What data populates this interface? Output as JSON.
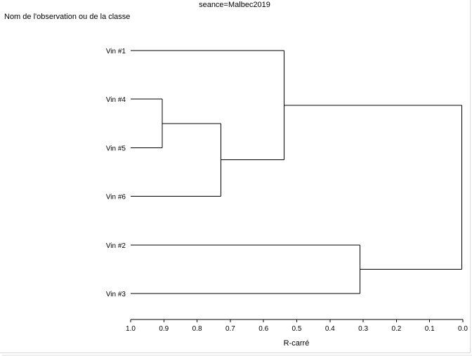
{
  "chart_data": {
    "type": "dendrogram",
    "title": "seance=Malbec2019",
    "ylabel": "Nom de l'observation ou de la classe",
    "xlabel": "R-carré",
    "xlim": [
      1.0,
      0.0
    ],
    "ticks": [
      "1.0",
      "0.9",
      "0.8",
      "0.7",
      "0.6",
      "0.5",
      "0.4",
      "0.3",
      "0.2",
      "0.1",
      "0.0"
    ],
    "leaves": [
      "Vin #1",
      "Vin #4",
      "Vin #5",
      "Vin #6",
      "Vin #2",
      "Vin #3"
    ],
    "merges": [
      {
        "left": "Vin #4",
        "right": "Vin #5",
        "height": 0.905
      },
      {
        "left": "Vin #4+Vin #5",
        "right": "Vin #6",
        "height": 0.728
      },
      {
        "left": "Vin #1",
        "right": "Vin #4+Vin #5+Vin #6",
        "height": 0.538
      },
      {
        "left": "Vin #2",
        "right": "Vin #3",
        "height": 0.31
      },
      {
        "left": "Vin #1+Vin #4+Vin #5+Vin #6",
        "right": "Vin #2+Vin #3",
        "height": 0.003
      }
    ]
  }
}
